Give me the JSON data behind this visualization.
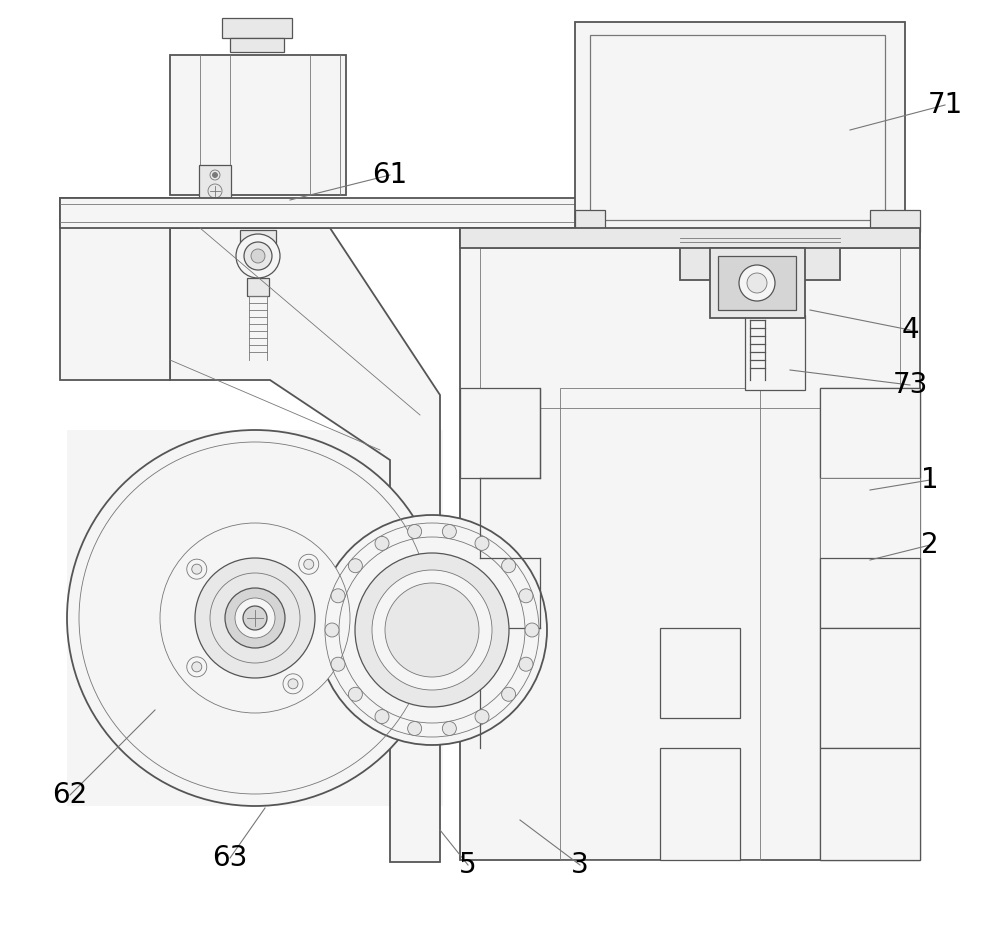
{
  "bg_color": "#ffffff",
  "lc_dark": "#555555",
  "lc_med": "#777777",
  "lc_light": "#aaaaaa",
  "fc_white": "#ffffff",
  "fc_light": "#f5f5f5",
  "fc_mid": "#e8e8e8",
  "fc_dark": "#d5d5d5",
  "lw_main": 1.3,
  "lw_med": 0.9,
  "lw_thin": 0.6,
  "label_fs": 20,
  "labels": [
    [
      "61",
      390,
      175,
      290,
      200
    ],
    [
      "71",
      945,
      105,
      850,
      130
    ],
    [
      "4",
      910,
      330,
      810,
      310
    ],
    [
      "73",
      910,
      385,
      790,
      370
    ],
    [
      "1",
      930,
      480,
      870,
      490
    ],
    [
      "2",
      930,
      545,
      870,
      560
    ],
    [
      "3",
      580,
      865,
      520,
      820
    ],
    [
      "5",
      468,
      865,
      440,
      830
    ],
    [
      "62",
      70,
      795,
      155,
      710
    ],
    [
      "63",
      230,
      858,
      265,
      808
    ]
  ]
}
